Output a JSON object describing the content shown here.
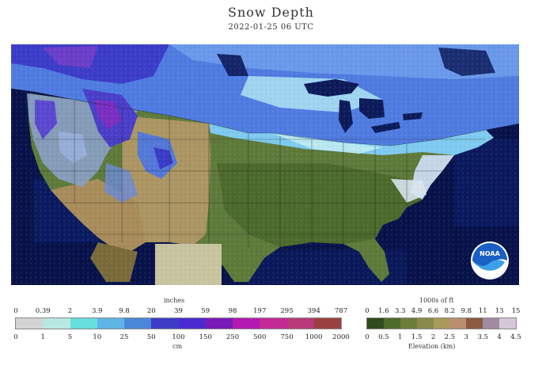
{
  "header": {
    "title": "Snow Depth",
    "subtitle": "2022-01-25 06 UTC"
  },
  "logo": {
    "text": "NOAA"
  },
  "snow_legend": {
    "top_unit": "inches",
    "top_ticks": [
      "0",
      "0.39",
      "2",
      "3.9",
      "9.8",
      "20",
      "39",
      "59",
      "98",
      "197",
      "295",
      "394",
      "787"
    ],
    "bottom_ticks": [
      "0",
      "1",
      "5",
      "10",
      "25",
      "50",
      "100",
      "150",
      "250",
      "500",
      "750",
      "1000",
      "2000"
    ],
    "bottom_unit": "cm",
    "colors": [
      "#d3d3d3",
      "#b8e8e2",
      "#66dede",
      "#5fb6e6",
      "#4a88d8",
      "#3c3cc6",
      "#4b2bcf",
      "#7a1ab8",
      "#b21ab2",
      "#c42a96",
      "#b83a7a",
      "#9a4040"
    ]
  },
  "elev_legend": {
    "top_unit": "1000s of ft",
    "top_ticks": [
      "0",
      "1.6",
      "3.3",
      "4.9",
      "6.6",
      "8.2",
      "9.8",
      "11",
      "13",
      "15"
    ],
    "bottom_ticks": [
      "0",
      "0.5",
      "1",
      "1.5",
      "2",
      "2.5",
      "3",
      "3.5",
      "4",
      "4.5"
    ],
    "bottom_unit": "Elevation (km)",
    "colors": [
      "#2f4a1c",
      "#4f6b2b",
      "#6c7d3a",
      "#8a8a4a",
      "#a89a5a",
      "#b89070",
      "#8c5a42",
      "#a08aa0",
      "#d4c8d8"
    ]
  }
}
